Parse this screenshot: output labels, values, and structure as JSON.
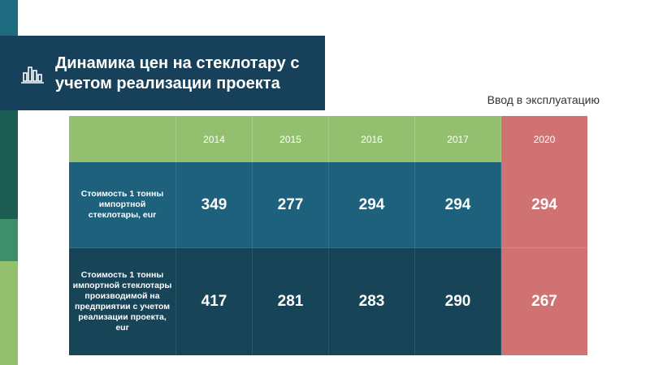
{
  "title": "Динамика цен на стеклотару с учетом реализации проекта",
  "subtitle": "Ввод в эксплуатацию",
  "icon": "bar-chart-icon",
  "colors": {
    "header_green": "#93c06f",
    "row_blue": "#1e617d",
    "row_dark": "#184457",
    "highlight_red": "#d07272",
    "banner": "#17405a"
  },
  "table": {
    "years": [
      "2014",
      "2015",
      "2016",
      "2017",
      "2020"
    ],
    "rows": [
      {
        "label": "Стоимость 1 тонны импортной стеклотары, eur",
        "values": [
          "349",
          "277",
          "294",
          "294",
          "294"
        ]
      },
      {
        "label": "Стоимость 1 тонны импортной стеклотары производимой на предприятии с учетом реализации проекта, eur",
        "values": [
          "417",
          "281",
          "283",
          "290",
          "267"
        ]
      }
    ]
  }
}
